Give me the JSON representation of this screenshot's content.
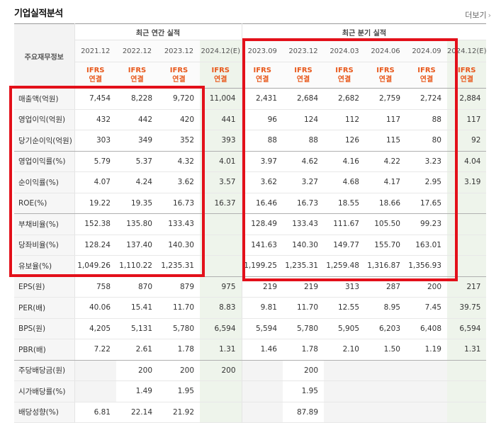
{
  "title": "기업실적분석",
  "more_label": "더보기",
  "more_arrow": "›",
  "header": {
    "row_label": "주요재무정보",
    "annual_group": "최근 연간 실적",
    "quarter_group": "최근 분기 실적",
    "annual_periods": [
      "2021.12",
      "2022.12",
      "2023.12",
      "2024.12(E)"
    ],
    "quarter_periods": [
      "2023.09",
      "2023.12",
      "2024.03",
      "2024.06",
      "2024.09",
      "2024.12(E)"
    ],
    "ifrs_top": "IFRS",
    "ifrs_bottom": "연결"
  },
  "rows": [
    {
      "label": "매출액(억원)",
      "annual": [
        "7,454",
        "8,228",
        "9,720",
        "11,004"
      ],
      "quarter": [
        "2,431",
        "2,684",
        "2,682",
        "2,759",
        "2,724",
        "2,884"
      ]
    },
    {
      "label": "영업이익(억원)",
      "annual": [
        "432",
        "442",
        "420",
        "441"
      ],
      "quarter": [
        "96",
        "124",
        "112",
        "117",
        "88",
        "117"
      ]
    },
    {
      "label": "당기순이익(억원)",
      "annual": [
        "303",
        "349",
        "352",
        "393"
      ],
      "quarter": [
        "88",
        "88",
        "126",
        "115",
        "80",
        "92"
      ]
    },
    {
      "label": "영업이익률(%)",
      "annual": [
        "5.79",
        "5.37",
        "4.32",
        "4.01"
      ],
      "quarter": [
        "3.97",
        "4.62",
        "4.16",
        "4.22",
        "3.23",
        "4.04"
      ]
    },
    {
      "label": "순이익률(%)",
      "annual": [
        "4.07",
        "4.24",
        "3.62",
        "3.57"
      ],
      "quarter": [
        "3.62",
        "3.27",
        "4.68",
        "4.17",
        "2.95",
        "3.19"
      ]
    },
    {
      "label": "ROE(%)",
      "annual": [
        "19.22",
        "19.35",
        "16.73",
        "16.37"
      ],
      "quarter": [
        "16.46",
        "16.73",
        "18.55",
        "18.66",
        "17.65",
        ""
      ]
    },
    {
      "label": "부채비율(%)",
      "annual": [
        "152.38",
        "135.80",
        "133.43",
        ""
      ],
      "quarter": [
        "128.49",
        "133.43",
        "111.67",
        "105.50",
        "99.23",
        ""
      ]
    },
    {
      "label": "당좌비율(%)",
      "annual": [
        "128.24",
        "137.40",
        "140.30",
        ""
      ],
      "quarter": [
        "141.63",
        "140.30",
        "149.77",
        "155.70",
        "163.01",
        ""
      ]
    },
    {
      "label": "유보율(%)",
      "annual": [
        "1,049.26",
        "1,110.22",
        "1,235.31",
        ""
      ],
      "quarter": [
        "1,199.25",
        "1,235.31",
        "1,259.48",
        "1,316.87",
        "1,356.93",
        ""
      ]
    },
    {
      "label": "EPS(원)",
      "annual": [
        "758",
        "870",
        "879",
        "975"
      ],
      "quarter": [
        "219",
        "219",
        "313",
        "287",
        "200",
        "217"
      ]
    },
    {
      "label": "PER(배)",
      "annual": [
        "40.06",
        "15.41",
        "11.70",
        "8.83"
      ],
      "quarter": [
        "9.81",
        "11.70",
        "12.55",
        "8.95",
        "7.45",
        "39.75"
      ]
    },
    {
      "label": "BPS(원)",
      "annual": [
        "4,205",
        "5,131",
        "5,780",
        "6,594"
      ],
      "quarter": [
        "5,594",
        "5,780",
        "5,905",
        "6,203",
        "6,408",
        "6,594"
      ]
    },
    {
      "label": "PBR(배)",
      "annual": [
        "7.22",
        "2.61",
        "1.78",
        "1.31"
      ],
      "quarter": [
        "1.46",
        "1.78",
        "2.10",
        "1.50",
        "1.19",
        "1.31"
      ]
    },
    {
      "label": "주당배당금(원)",
      "annual": [
        "",
        "200",
        "200",
        "200"
      ],
      "quarter": [
        "",
        "200",
        "",
        "",
        "",
        ""
      ]
    },
    {
      "label": "시가배당률(%)",
      "annual": [
        "",
        "1.49",
        "1.95",
        ""
      ],
      "quarter": [
        "",
        "1.95",
        "",
        "",
        "",
        ""
      ]
    },
    {
      "label": "배당성향(%)",
      "annual": [
        "6.81",
        "22.14",
        "21.92",
        ""
      ],
      "quarter": [
        "",
        "87.89",
        "",
        "",
        "",
        ""
      ]
    }
  ],
  "colors": {
    "estimate_bg": "#eef4eb",
    "ifrs_text": "#e8581b",
    "highlight_box": "#e3101a"
  }
}
